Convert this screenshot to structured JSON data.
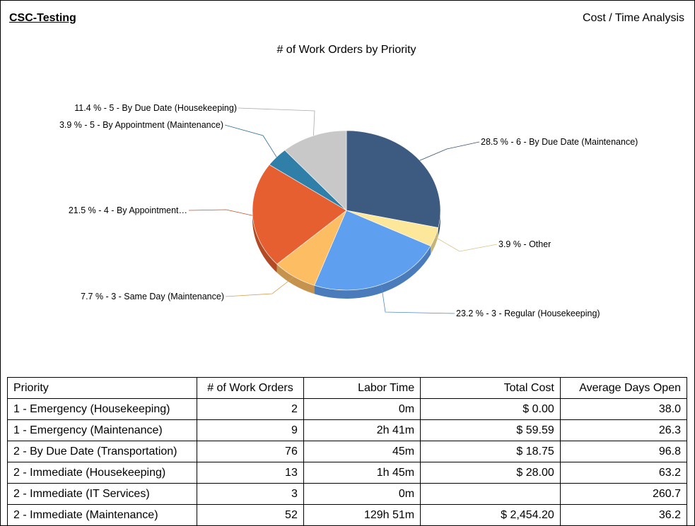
{
  "header": {
    "org_title": "CSC-Testing",
    "report_title": "Cost / Time Analysis"
  },
  "chart_data": {
    "type": "pie",
    "title": "# of Work Orders by Priority",
    "slices": [
      {
        "label": "28.5 % - 6 - By Due Date (Maintenance)",
        "value": 28.5,
        "color": "#3d5a80"
      },
      {
        "label": "3.9 % - Other",
        "value": 3.9,
        "color": "#fde79a"
      },
      {
        "label": "23.2 % - 3 - Regular (Housekeeping)",
        "value": 23.2,
        "color": "#5f9ff0"
      },
      {
        "label": "7.7 % - 3 - Same Day (Maintenance)",
        "value": 7.7,
        "color": "#fcbd63"
      },
      {
        "label": "21.5 % - 4 - By Appointment…",
        "value": 21.5,
        "color": "#e65f31"
      },
      {
        "label": "3.9 % - 5 - By Appointment (Maintenance)",
        "value": 3.9,
        "color": "#2f7fa8"
      },
      {
        "label": "11.4 % - 5 - By Due Date (Housekeeping)",
        "value": 11.4,
        "color": "#c8c8c8"
      }
    ]
  },
  "table": {
    "headers": [
      "Priority",
      "# of Work Orders",
      "Labor Time",
      "Total Cost",
      "Average Days Open"
    ],
    "rows": [
      [
        "1 - Emergency (Housekeeping)",
        "2",
        "0m",
        "$ 0.00",
        "38.0"
      ],
      [
        "1 - Emergency (Maintenance)",
        "9",
        "2h 41m",
        "$ 59.59",
        "26.3"
      ],
      [
        "2 - By Due Date (Transportation)",
        "76",
        "45m",
        "$ 18.75",
        "96.8"
      ],
      [
        "2 - Immediate (Housekeeping)",
        "13",
        "1h 45m",
        "$ 28.00",
        "63.2"
      ],
      [
        "2 - Immediate (IT Services)",
        "3",
        "0m",
        "",
        "260.7"
      ],
      [
        "2 - Immediate (Maintenance)",
        "52",
        "129h 51m",
        "$ 2,454.20",
        "36.2"
      ]
    ]
  }
}
